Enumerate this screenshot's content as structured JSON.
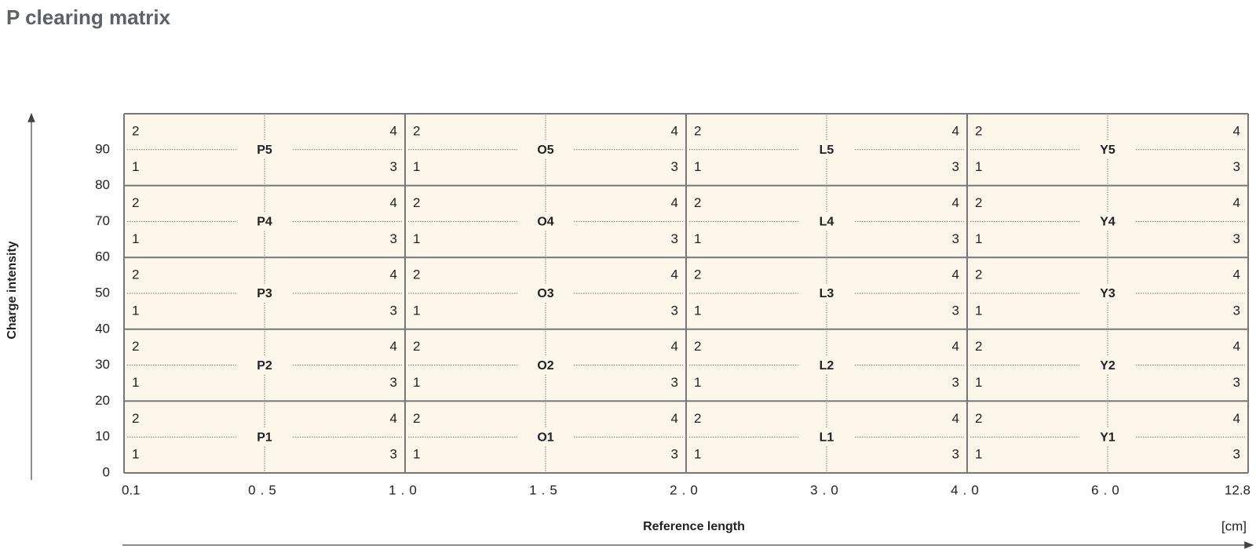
{
  "title": "P clearing matrix",
  "y_axis": {
    "label": "Charge intensity",
    "ticks": [
      "0",
      "10",
      "20",
      "30",
      "40",
      "50",
      "60",
      "70",
      "80",
      "90"
    ]
  },
  "x_axis": {
    "label": "Reference length",
    "unit": "[cm]",
    "ticks": [
      "0.1",
      "0.5",
      "1.0",
      "1.5",
      "2.0",
      "3.0",
      "4.0",
      "6.0",
      "12.8"
    ]
  },
  "corners": [
    "2",
    "4",
    "1",
    "3"
  ],
  "rows": [
    [
      "P5",
      "O5",
      "L5",
      "Y5"
    ],
    [
      "P4",
      "O4",
      "L4",
      "Y4"
    ],
    [
      "P3",
      "O3",
      "L3",
      "Y3"
    ],
    [
      "P2",
      "O2",
      "L2",
      "Y2"
    ],
    [
      "P1",
      "O1",
      "L1",
      "Y1"
    ]
  ]
}
